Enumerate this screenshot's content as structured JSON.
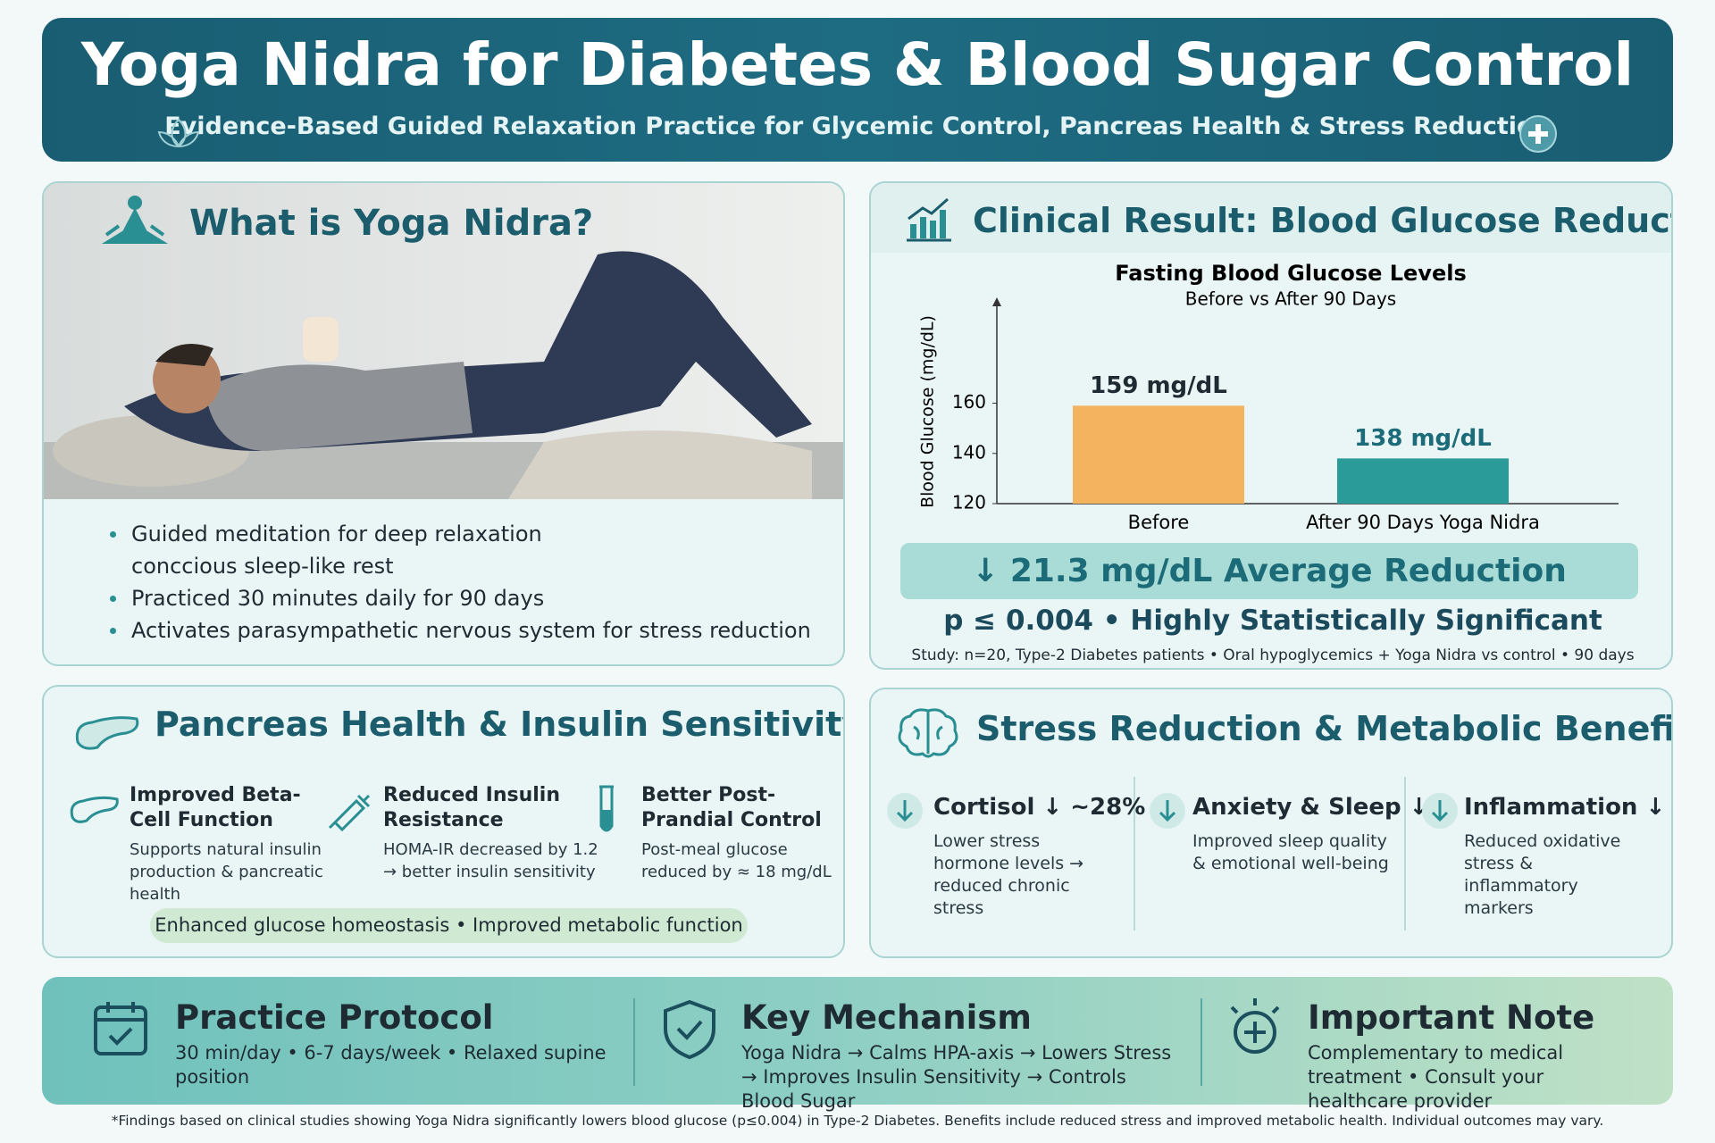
{
  "header": {
    "title": "Yoga Nidra for Diabetes & Blood Sugar Control",
    "subtitle": "Evidence-Based Guided Relaxation Practice for Glycemic Control, Pancreas Health & Stress Reduction"
  },
  "what_is": {
    "title": "What is Yoga Nidra?",
    "bullets": [
      "Guided meditation for deep relaxation conccious sleep-like rest",
      "Practiced 30 minutes daily for 90 days",
      "Activates parasympathetic nervous system for stress reduction"
    ]
  },
  "clinical": {
    "title": "Clinical Result: Blood Glucose Reduction",
    "reduction": "↓ 21.3 mg/dL Average Reduction",
    "significance": "p ≤ 0.004 • Highly Statistically Significant",
    "study": "Study: n=20, Type-2 Diabetes patients • Oral hypoglycemics + Yoga Nidra vs control • 90 days"
  },
  "chart_data": {
    "type": "bar",
    "title": "Fasting Blood Glucose Levels",
    "subtitle": "Before vs After 90 Days",
    "y_label": "Blood Glucose (mg/dL)",
    "categories": [
      "Before",
      "After 90 Days Yoga Nidra"
    ],
    "values": [
      159,
      138
    ],
    "value_labels": [
      "159 mg/dL",
      "138 mg/dL"
    ],
    "colors": [
      "#f4b35e",
      "#2a9b98"
    ],
    "ylim": [
      120,
      200
    ],
    "yticks": [
      120,
      140,
      160
    ],
    "grid": false
  },
  "pancreas": {
    "title": "Pancreas Health & Insulin Sensitivity",
    "items": [
      {
        "title": "Improved Beta-Cell Function",
        "desc": "Supports natural insulin production & pancreatic health"
      },
      {
        "title": "Reduced Insulin Resistance",
        "desc": "HOMA-IR decreased by 1.2 → better insulin sensitivity"
      },
      {
        "title": "Better Post-Prandial Control",
        "desc": "Post-meal glucose reduced by ≈ 18 mg/dL"
      }
    ],
    "footer": "Enhanced glucose homeostasis • Improved metabolic function"
  },
  "stress": {
    "title": "Stress Reduction & Metabolic Benefits",
    "items": [
      {
        "title": "Cortisol ↓ ~28%",
        "desc": "Lower stress hormone levels → reduced chronic stress"
      },
      {
        "title": "Anxiety & Sleep ↓",
        "desc": "Improved sleep quality & emotional well-being"
      },
      {
        "title": "Inflammation ↓",
        "desc": "Reduced oxidative stress & inflammatory markers"
      }
    ]
  },
  "bottom": [
    {
      "title": "Practice Protocol",
      "text": "30 min/day • 6-7 days/week • Relaxed supine position"
    },
    {
      "title": "Key Mechanism",
      "text": "Yoga Nidra → Calms HPA-axis → Lowers Stress → Improves Insulin Sensitivity → Controls Blood Sugar"
    },
    {
      "title": "Important Note",
      "text": "Complementary to medical treatment • Consult your healthcare provider"
    }
  ],
  "footnote": "*Findings based on clinical studies showing Yoga Nidra significantly lowers blood glucose (p≤0.004) in Type-2 Diabetes. Benefits include reduced stress and improved metabolic health. Individual outcomes may vary."
}
